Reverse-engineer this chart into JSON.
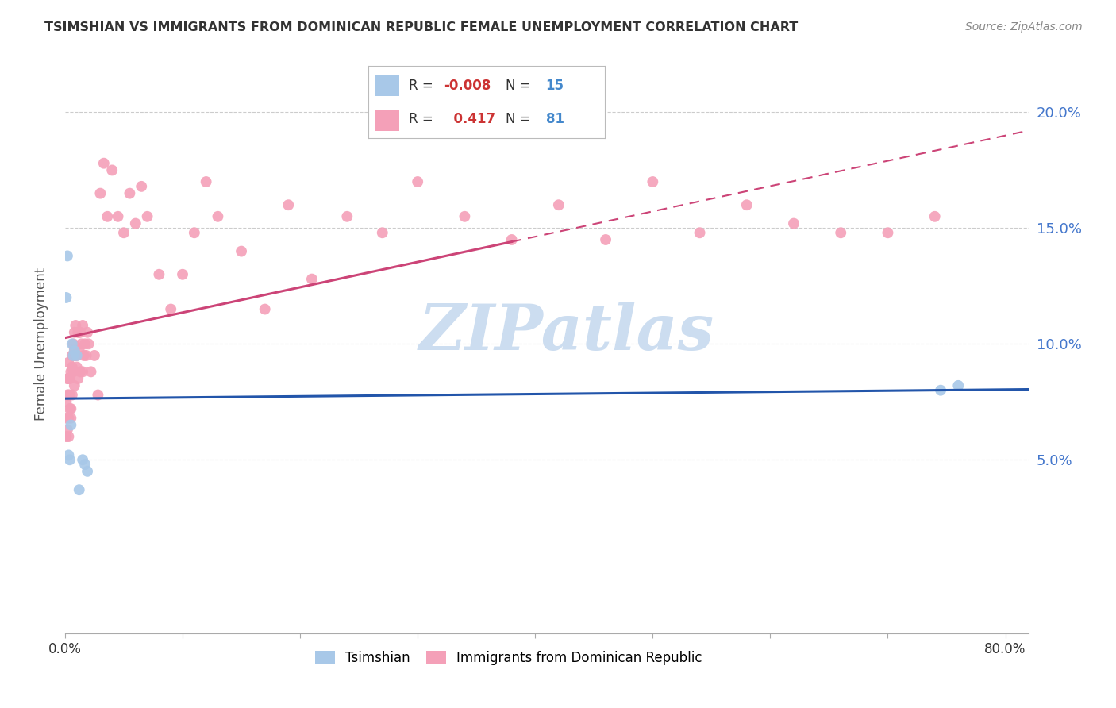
{
  "title": "TSIMSHIAN VS IMMIGRANTS FROM DOMINICAN REPUBLIC FEMALE UNEMPLOYMENT CORRELATION CHART",
  "source": "Source: ZipAtlas.com",
  "ylabel": "Female Unemployment",
  "xlim": [
    0.0,
    0.82
  ],
  "ylim": [
    -0.025,
    0.225
  ],
  "yticks": [
    0.05,
    0.1,
    0.15,
    0.2
  ],
  "ytick_labels": [
    "5.0%",
    "10.0%",
    "15.0%",
    "20.0%"
  ],
  "color_blue": "#a8c8e8",
  "color_pink": "#f4a0b8",
  "color_line_blue": "#2255aa",
  "color_line_pink": "#cc4477",
  "R_blue": -0.008,
  "N_blue": 15,
  "R_pink": 0.417,
  "N_pink": 81,
  "tsimshian_x": [
    0.001,
    0.002,
    0.003,
    0.004,
    0.005,
    0.006,
    0.007,
    0.008,
    0.01,
    0.012,
    0.015,
    0.017,
    0.019,
    0.745,
    0.76
  ],
  "tsimshian_y": [
    0.12,
    0.138,
    0.052,
    0.05,
    0.065,
    0.1,
    0.095,
    0.097,
    0.095,
    0.037,
    0.05,
    0.048,
    0.045,
    0.08,
    0.082
  ],
  "dr_x": [
    0.001,
    0.001,
    0.001,
    0.002,
    0.002,
    0.002,
    0.003,
    0.003,
    0.003,
    0.003,
    0.003,
    0.004,
    0.004,
    0.004,
    0.005,
    0.005,
    0.005,
    0.006,
    0.006,
    0.006,
    0.007,
    0.007,
    0.007,
    0.008,
    0.008,
    0.008,
    0.009,
    0.009,
    0.01,
    0.01,
    0.011,
    0.011,
    0.012,
    0.012,
    0.013,
    0.013,
    0.014,
    0.015,
    0.015,
    0.016,
    0.017,
    0.018,
    0.019,
    0.02,
    0.022,
    0.025,
    0.028,
    0.03,
    0.033,
    0.036,
    0.04,
    0.045,
    0.05,
    0.055,
    0.06,
    0.065,
    0.07,
    0.08,
    0.09,
    0.1,
    0.11,
    0.12,
    0.13,
    0.15,
    0.17,
    0.19,
    0.21,
    0.24,
    0.27,
    0.3,
    0.34,
    0.38,
    0.42,
    0.46,
    0.5,
    0.54,
    0.58,
    0.62,
    0.66,
    0.7,
    0.74
  ],
  "dr_y": [
    0.06,
    0.068,
    0.075,
    0.063,
    0.078,
    0.085,
    0.06,
    0.068,
    0.078,
    0.085,
    0.092,
    0.072,
    0.078,
    0.085,
    0.068,
    0.072,
    0.088,
    0.078,
    0.09,
    0.095,
    0.088,
    0.095,
    0.1,
    0.082,
    0.098,
    0.105,
    0.095,
    0.108,
    0.09,
    0.095,
    0.085,
    0.105,
    0.098,
    0.105,
    0.088,
    0.105,
    0.1,
    0.088,
    0.108,
    0.095,
    0.1,
    0.095,
    0.105,
    0.1,
    0.088,
    0.095,
    0.078,
    0.165,
    0.178,
    0.155,
    0.175,
    0.155,
    0.148,
    0.165,
    0.152,
    0.168,
    0.155,
    0.13,
    0.115,
    0.13,
    0.148,
    0.17,
    0.155,
    0.14,
    0.115,
    0.16,
    0.128,
    0.155,
    0.148,
    0.17,
    0.155,
    0.145,
    0.16,
    0.145,
    0.17,
    0.148,
    0.16,
    0.152,
    0.148,
    0.148,
    0.155
  ],
  "watermark_text": "ZIPatlas",
  "watermark_color": "#ccddf0",
  "background_color": "#ffffff",
  "grid_color": "#cccccc",
  "legend_R_color": "#cc3333",
  "legend_N_color": "#4488cc",
  "legend_label_color": "#333333"
}
